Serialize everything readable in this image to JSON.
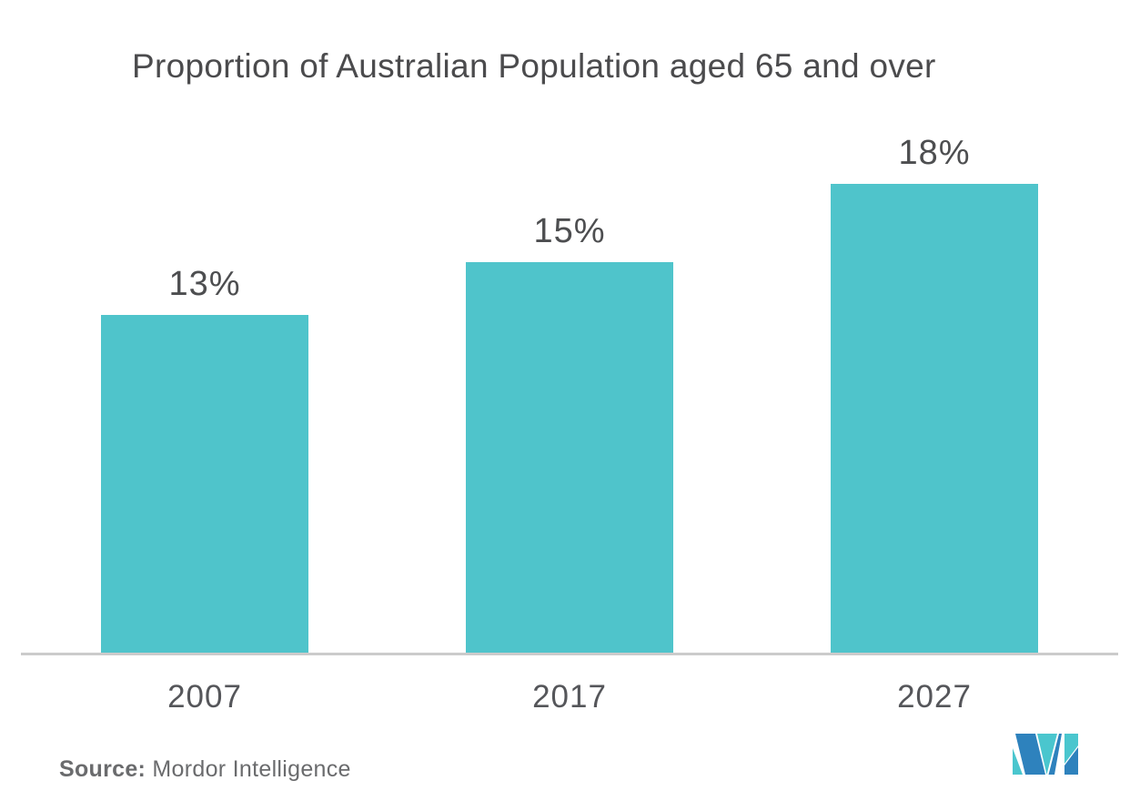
{
  "title": "Proportion of Australian Population aged 65 and over",
  "chart_data": {
    "type": "bar",
    "title": "Proportion of Australian Population aged 65 and over",
    "categories": [
      "2007",
      "2017",
      "2027"
    ],
    "values": [
      13,
      15,
      18
    ],
    "value_labels": [
      "13%",
      "15%",
      "18%"
    ],
    "xlabel": "",
    "ylabel": "",
    "ylim": [
      0,
      20
    ],
    "grid": false,
    "legend": "none",
    "y_axis_visible": false,
    "bar_color": "#4fc4cb"
  },
  "source": {
    "label": "Source:",
    "text": " Mordor Intelligence"
  },
  "logo": {
    "name": "mordor-intelligence-logo",
    "blue": "#2e82bd",
    "teal": "#4ac6ce"
  },
  "colors": {
    "background": "#ffffff",
    "title_text": "#4b4b4d",
    "value_label_text": "#4d4e50",
    "tick_label_text": "#55565a",
    "axis_line": "#cbcbcb",
    "source_text": "#6a6b6d",
    "bar": "#4fc4cb"
  }
}
